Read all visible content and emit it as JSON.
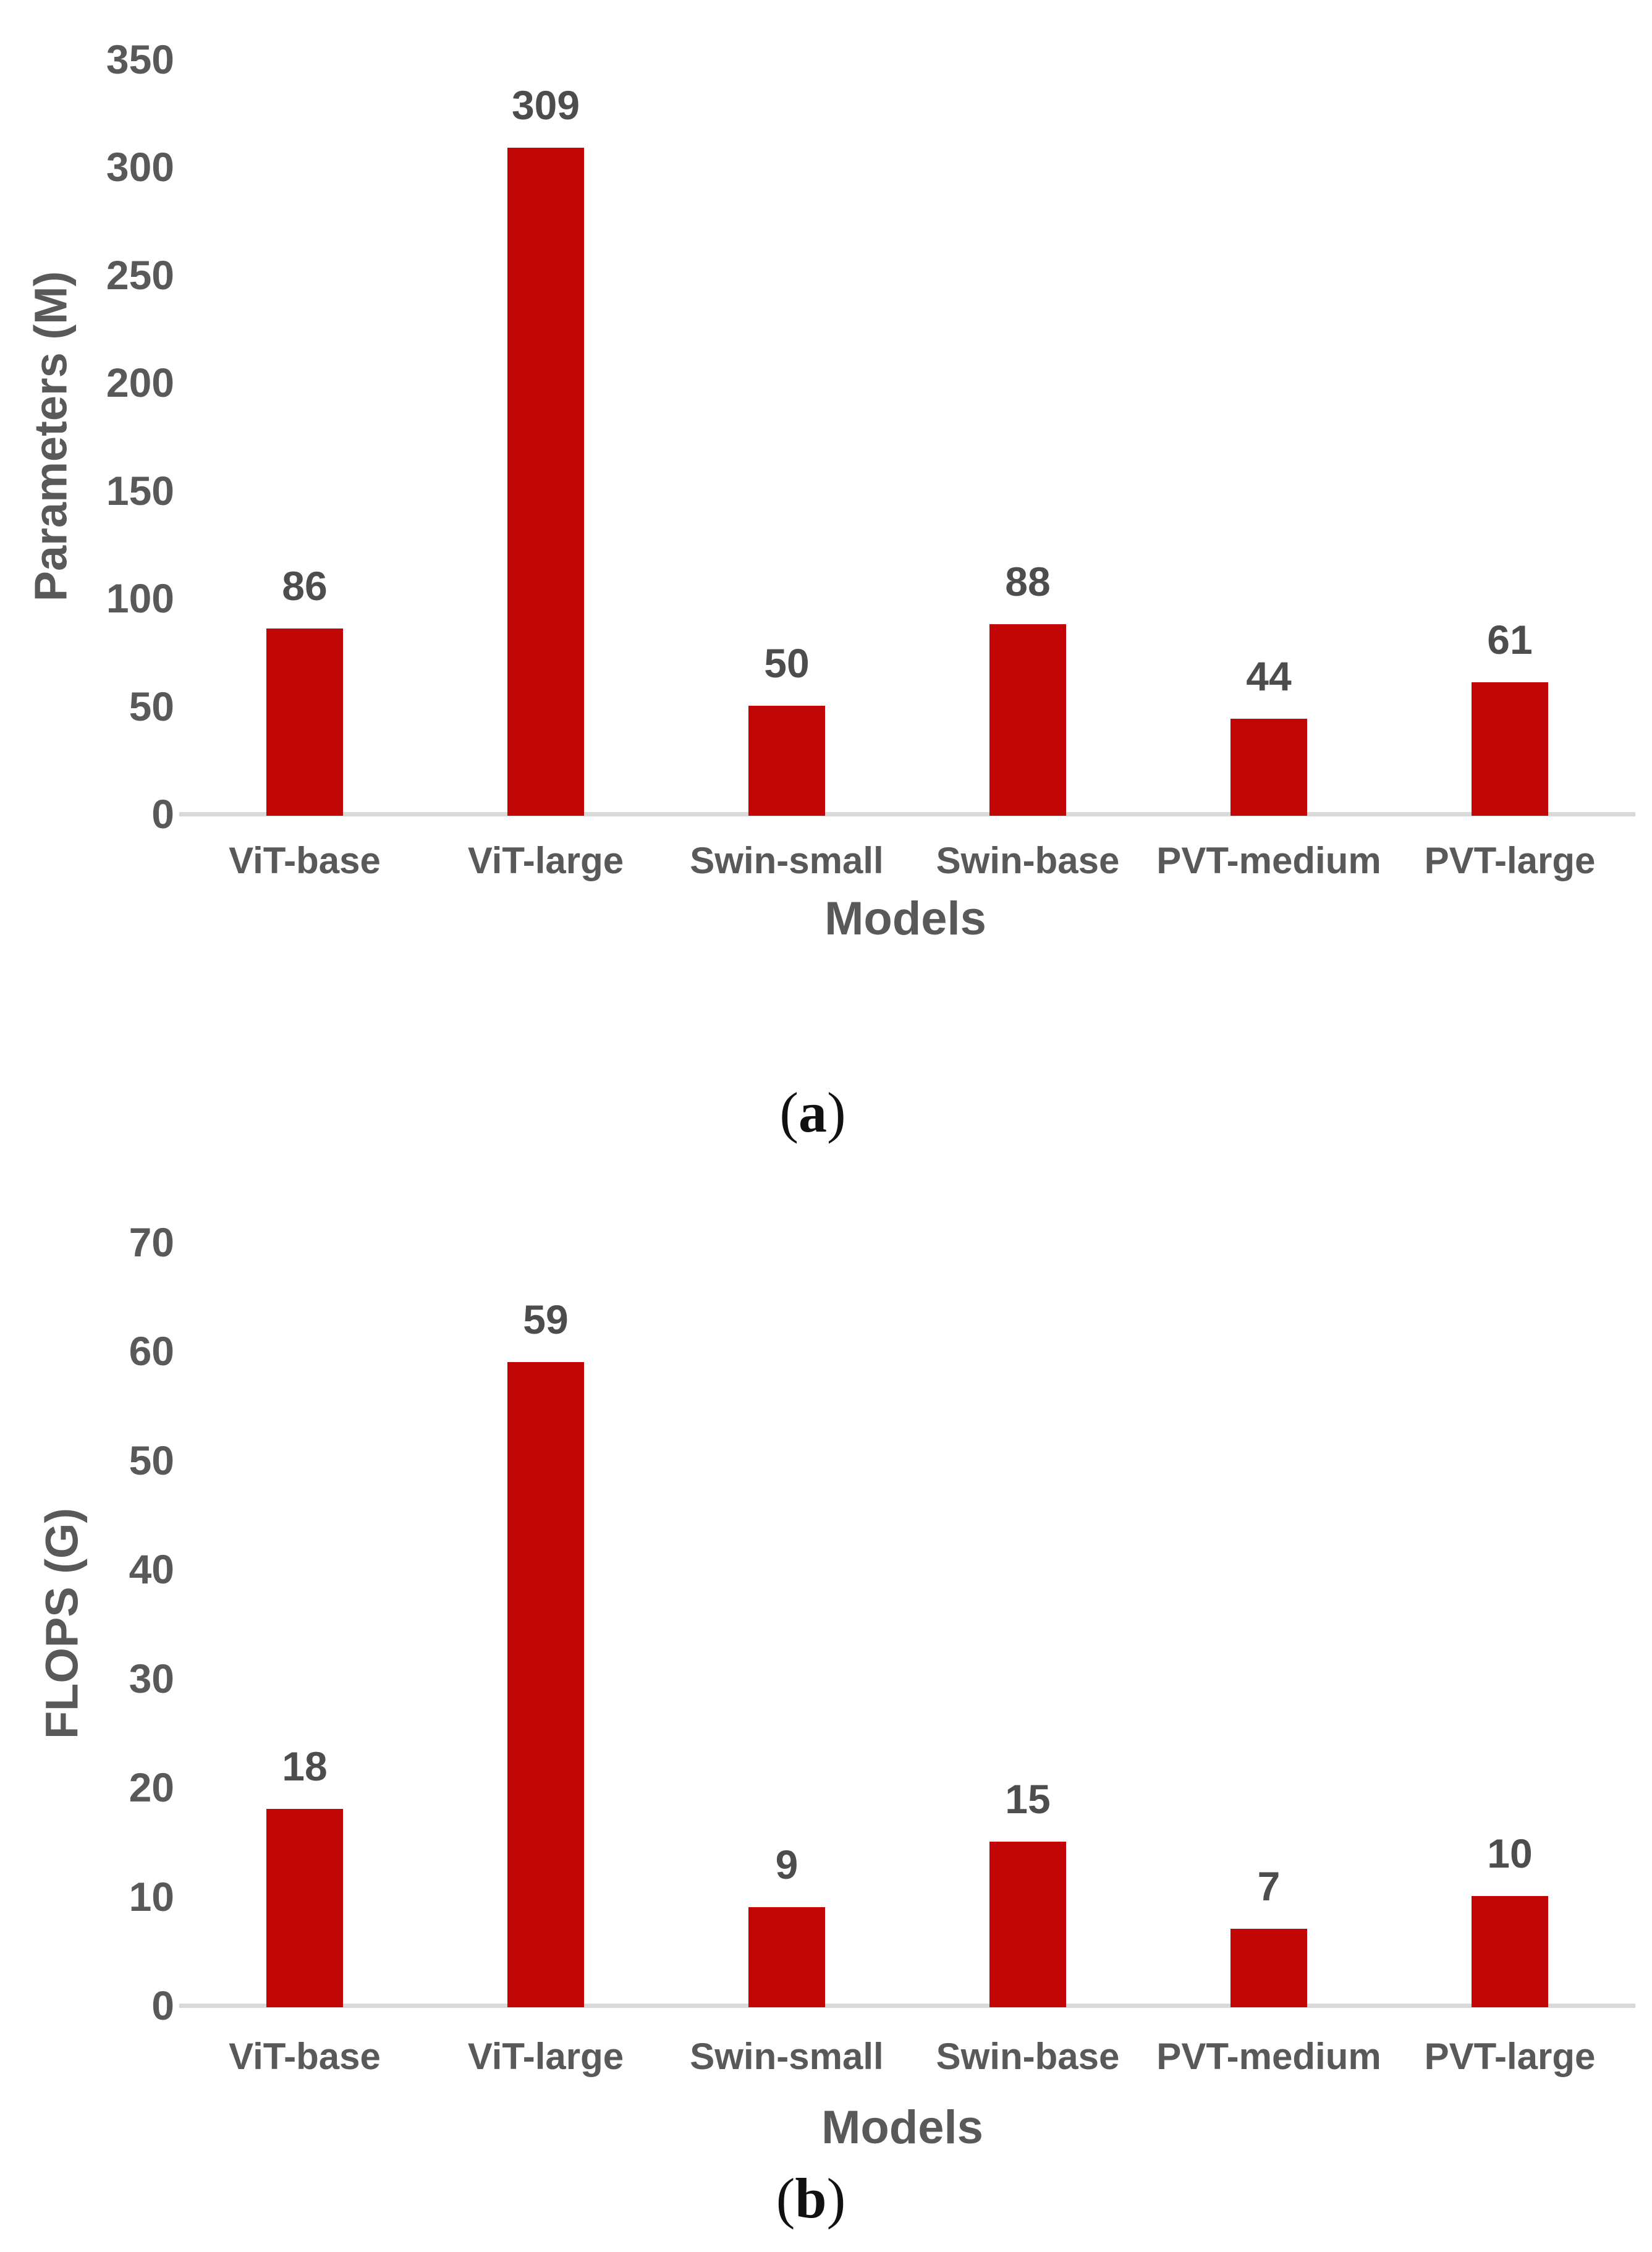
{
  "figure": {
    "captions": [
      {
        "open": "(",
        "letter": "a",
        "close": ")"
      },
      {
        "open": "(",
        "letter": "b",
        "close": ")"
      }
    ]
  },
  "colors": {
    "bar": "#c00606",
    "axis_line": "#d9d9d9",
    "tick_text": "#595959",
    "value_label_text": "#4d4d4d",
    "caption_text": "#111111",
    "background": "#ffffff"
  },
  "chart_data": [
    {
      "type": "bar",
      "categories": [
        "ViT-base",
        "ViT-large",
        "Swin-small",
        "Swin-base",
        "PVT-medium",
        "PVT-large"
      ],
      "values": [
        86,
        309,
        50,
        88,
        44,
        61
      ],
      "data_labels_shown": true,
      "xlabel": "Models",
      "ylabel": "Parameters (M)",
      "ylim": [
        0,
        350
      ],
      "ytick_step": 50,
      "yticks": [
        0,
        50,
        100,
        150,
        200,
        250,
        300,
        350
      ],
      "grid": false,
      "legend": "none",
      "bar_color": "#c00606",
      "caption": "(a)"
    },
    {
      "type": "bar",
      "categories": [
        "ViT-base",
        "ViT-large",
        "Swin-small",
        "Swin-base",
        "PVT-medium",
        "PVT-large"
      ],
      "values": [
        18,
        59,
        9,
        15,
        7,
        10
      ],
      "data_labels_shown": true,
      "xlabel": "Models",
      "ylabel": "FLOPS (G)",
      "ylim": [
        0,
        70
      ],
      "ytick_step": 10,
      "yticks": [
        0,
        10,
        20,
        30,
        40,
        50,
        60,
        70
      ],
      "grid": false,
      "legend": "none",
      "bar_color": "#c00606",
      "caption": "(b)"
    }
  ]
}
